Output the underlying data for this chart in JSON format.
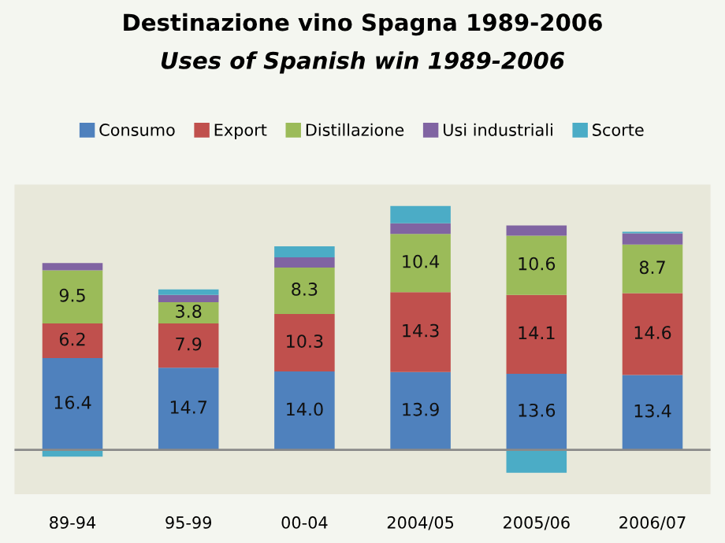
{
  "chart_data": {
    "type": "bar",
    "stacked": true,
    "title": "Destinazione vino Spagna 1989-2006",
    "subtitle": "Uses of Spanish win 1989-2006",
    "categories": [
      "89-94",
      "95-99",
      "00-04",
      "2004/05",
      "2005/06",
      "2006/07"
    ],
    "series": [
      {
        "name": "Consumo",
        "color": "#4f81bd",
        "values": [
          16.4,
          14.7,
          14.0,
          13.9,
          13.6,
          13.4
        ],
        "value_labels": [
          "16.4",
          "14.7",
          "14.0",
          "13.9",
          "13.6",
          "13.4"
        ]
      },
      {
        "name": "Export",
        "color": "#c0504d",
        "values": [
          6.2,
          7.9,
          10.3,
          14.3,
          14.1,
          14.6
        ],
        "value_labels": [
          "6.2",
          "7.9",
          "10.3",
          "14.3",
          "14.1",
          "14.6"
        ]
      },
      {
        "name": "Distillazione",
        "color": "#9bbb59",
        "values": [
          9.5,
          3.8,
          8.3,
          10.4,
          10.6,
          8.7
        ],
        "value_labels": [
          "9.5",
          "3.8",
          "8.3",
          "10.4",
          "10.6",
          "8.7"
        ]
      },
      {
        "name": "Usi industriali",
        "color": "#8064a2",
        "values": [
          1.3,
          1.3,
          1.8,
          1.9,
          1.8,
          2.0
        ]
      },
      {
        "name": "Scorte",
        "color": "#4bacc6",
        "values": [
          -1.2,
          1.0,
          2.0,
          3.1,
          -4.1,
          0.3
        ]
      }
    ],
    "legend": "top",
    "grid": false
  }
}
